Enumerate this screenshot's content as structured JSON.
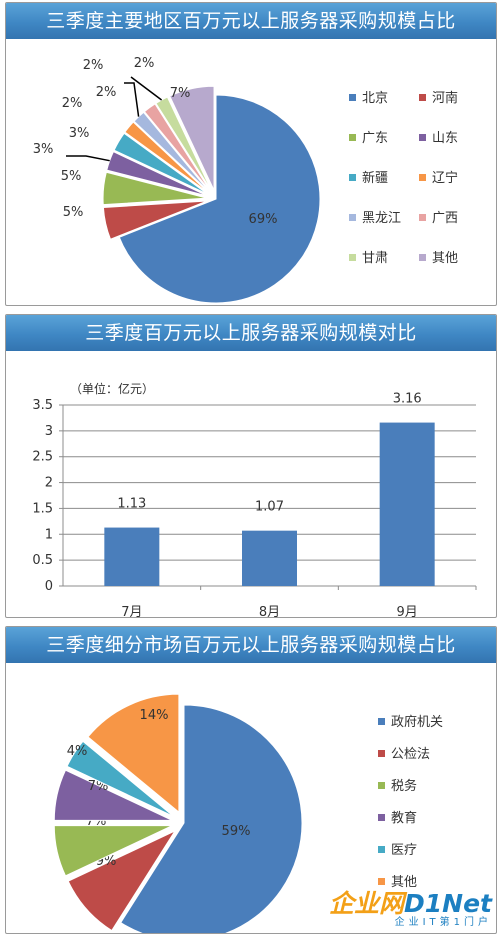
{
  "colors": {
    "banner_top": "#5aa3d8",
    "banner_bottom": "#3374b0",
    "pie": [
      "#4a7ebb",
      "#be4b48",
      "#98b954",
      "#7d60a0",
      "#46aac5",
      "#f79646",
      "#a5b8de",
      "#e8a3a2",
      "#c6dc9e",
      "#b7a9cd"
    ],
    "bar": "#4a7ebb"
  },
  "chart_data": [
    {
      "type": "pie",
      "title": "三季度主要地区百万元以上服务器采购规模占比",
      "categories": [
        "北京",
        "河南",
        "广东",
        "山东",
        "新疆",
        "辽宁",
        "黑龙江",
        "广西",
        "甘肃",
        "其他"
      ],
      "values": [
        69,
        5,
        5,
        3,
        3,
        2,
        2,
        2,
        2,
        7
      ],
      "labels": [
        "69%",
        "5%",
        "5%",
        "3%",
        "3%",
        "2%",
        "2%",
        "2%",
        "2%",
        "7%"
      ],
      "legend": "right"
    },
    {
      "type": "bar",
      "title": "三季度百万元以上服务器采购规模对比",
      "unit_note": "（单位：亿元）",
      "categories": [
        "7月",
        "8月",
        "9月"
      ],
      "values": [
        1.13,
        1.07,
        3.16
      ],
      "labels": [
        "1.13",
        "1.07",
        "3.16"
      ],
      "yticks": [
        "0",
        "0.5",
        "1",
        "1.5",
        "2",
        "2.5",
        "3",
        "3.5"
      ],
      "ylim": [
        0,
        3.5
      ],
      "grid": true
    },
    {
      "type": "pie",
      "title": "三季度细分市场百万元以上服务器采购规模占比",
      "categories": [
        "政府机关",
        "公检法",
        "税务",
        "教育",
        "医疗",
        "其他"
      ],
      "values": [
        59,
        9,
        7,
        7,
        4,
        14
      ],
      "labels": [
        "59%",
        "9%",
        "7%",
        "7%",
        "4%",
        "14%"
      ],
      "legend": "right"
    }
  ],
  "watermark": {
    "main_a": "企业网",
    "main_b": "D1Net",
    "sub": "企业IT第1门户"
  }
}
